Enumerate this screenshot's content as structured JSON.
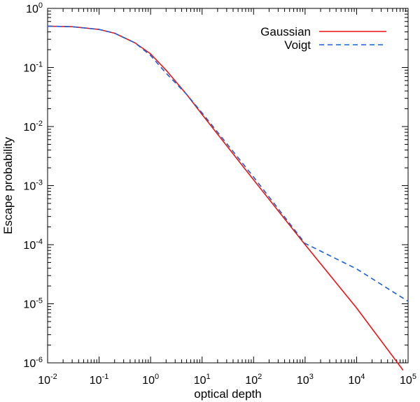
{
  "chart_data": {
    "type": "line",
    "title": "",
    "xlabel": "optical depth",
    "ylabel": "Escape probability",
    "xscale": "log",
    "yscale": "log",
    "xlim": [
      0.01,
      100000
    ],
    "ylim": [
      1e-06,
      1
    ],
    "grid": false,
    "legend_position": "top-right",
    "x_ticks": [
      {
        "base": "10",
        "exp": "-2"
      },
      {
        "base": "10",
        "exp": "-1"
      },
      {
        "base": "10",
        "exp": "0"
      },
      {
        "base": "10",
        "exp": "1"
      },
      {
        "base": "10",
        "exp": "2"
      },
      {
        "base": "10",
        "exp": "3"
      },
      {
        "base": "10",
        "exp": "4"
      },
      {
        "base": "10",
        "exp": "5"
      }
    ],
    "y_ticks": [
      {
        "base": "10",
        "exp": "-6"
      },
      {
        "base": "10",
        "exp": "-5"
      },
      {
        "base": "10",
        "exp": "-4"
      },
      {
        "base": "10",
        "exp": "-3"
      },
      {
        "base": "10",
        "exp": "-2"
      },
      {
        "base": "10",
        "exp": "-1"
      },
      {
        "base": "10",
        "exp": "0"
      }
    ],
    "series": [
      {
        "name": "Gaussian",
        "color": "#ee1111",
        "style": "solid",
        "x": [
          0.01,
          0.03,
          0.1,
          0.2,
          0.5,
          1,
          2,
          5,
          10,
          100,
          1000,
          10000,
          80000
        ],
        "y": [
          0.5,
          0.49,
          0.44,
          0.38,
          0.26,
          0.17,
          0.09,
          0.035,
          0.016,
          0.00125,
          0.0001,
          8.5e-06,
          7.5e-07
        ]
      },
      {
        "name": "Voigt",
        "color": "#1a5fd6",
        "style": "dashed",
        "x": [
          0.01,
          0.03,
          0.1,
          0.2,
          0.5,
          1,
          2,
          5,
          10,
          100,
          1000,
          10000,
          100000
        ],
        "y": [
          0.5,
          0.49,
          0.44,
          0.38,
          0.26,
          0.16,
          0.08,
          0.035,
          0.017,
          0.0014,
          0.000105,
          3.9e-05,
          1.1e-05
        ]
      }
    ]
  }
}
